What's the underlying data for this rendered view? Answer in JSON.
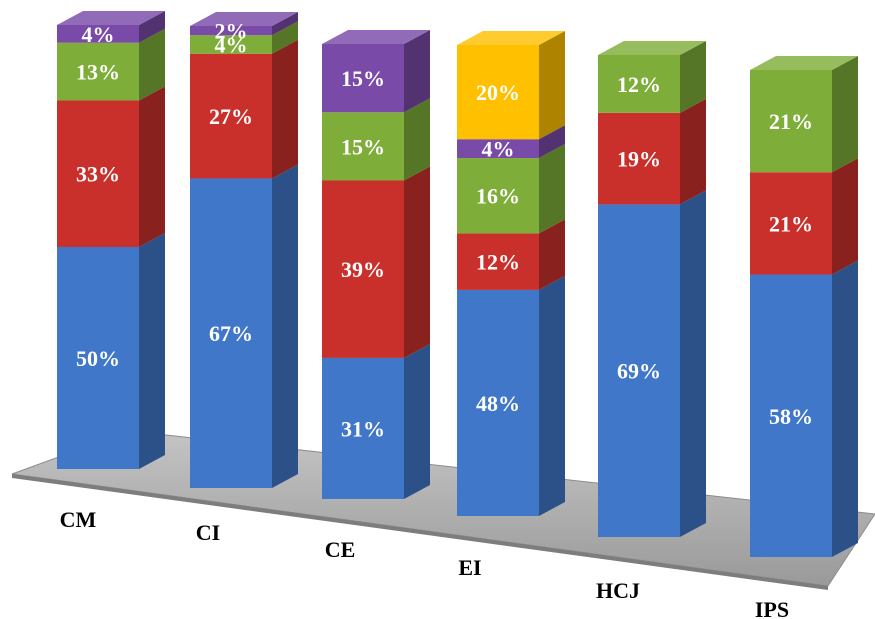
{
  "chart_data": {
    "type": "bar",
    "stacked": true,
    "style": "3d-columns",
    "categories": [
      "CM",
      "CI",
      "CE",
      "EI",
      "HCJ",
      "IPS"
    ],
    "series": [
      {
        "color": "#4077C9",
        "values": [
          50,
          67,
          31,
          48,
          69,
          58
        ],
        "labels": [
          "50%",
          "67%",
          "31%",
          "48%",
          "69%",
          "58%"
        ]
      },
      {
        "color": "#C9302C",
        "values": [
          33,
          27,
          39,
          12,
          19,
          21
        ],
        "labels": [
          "33%",
          "27%",
          "39%",
          "12%",
          "19%",
          "21%"
        ]
      },
      {
        "color": "#7FAD3A",
        "values": [
          13,
          4,
          15,
          16,
          12,
          21
        ],
        "labels": [
          "13%",
          "4%",
          "15%",
          "16%",
          "12%",
          "21%"
        ]
      },
      {
        "color": "#7A4AA8",
        "values": [
          4,
          2,
          15,
          4,
          null,
          null
        ],
        "labels": [
          "4%",
          "2%",
          "15%",
          "4%",
          null,
          null
        ]
      },
      {
        "color": "#FFC000",
        "values": [
          null,
          null,
          null,
          20,
          null,
          null
        ],
        "labels": [
          null,
          null,
          null,
          "20%",
          null,
          null
        ]
      }
    ],
    "ylim": [
      0,
      100
    ],
    "grid": false,
    "legend": "none",
    "title": "",
    "xlabel": "",
    "ylabel": ""
  }
}
